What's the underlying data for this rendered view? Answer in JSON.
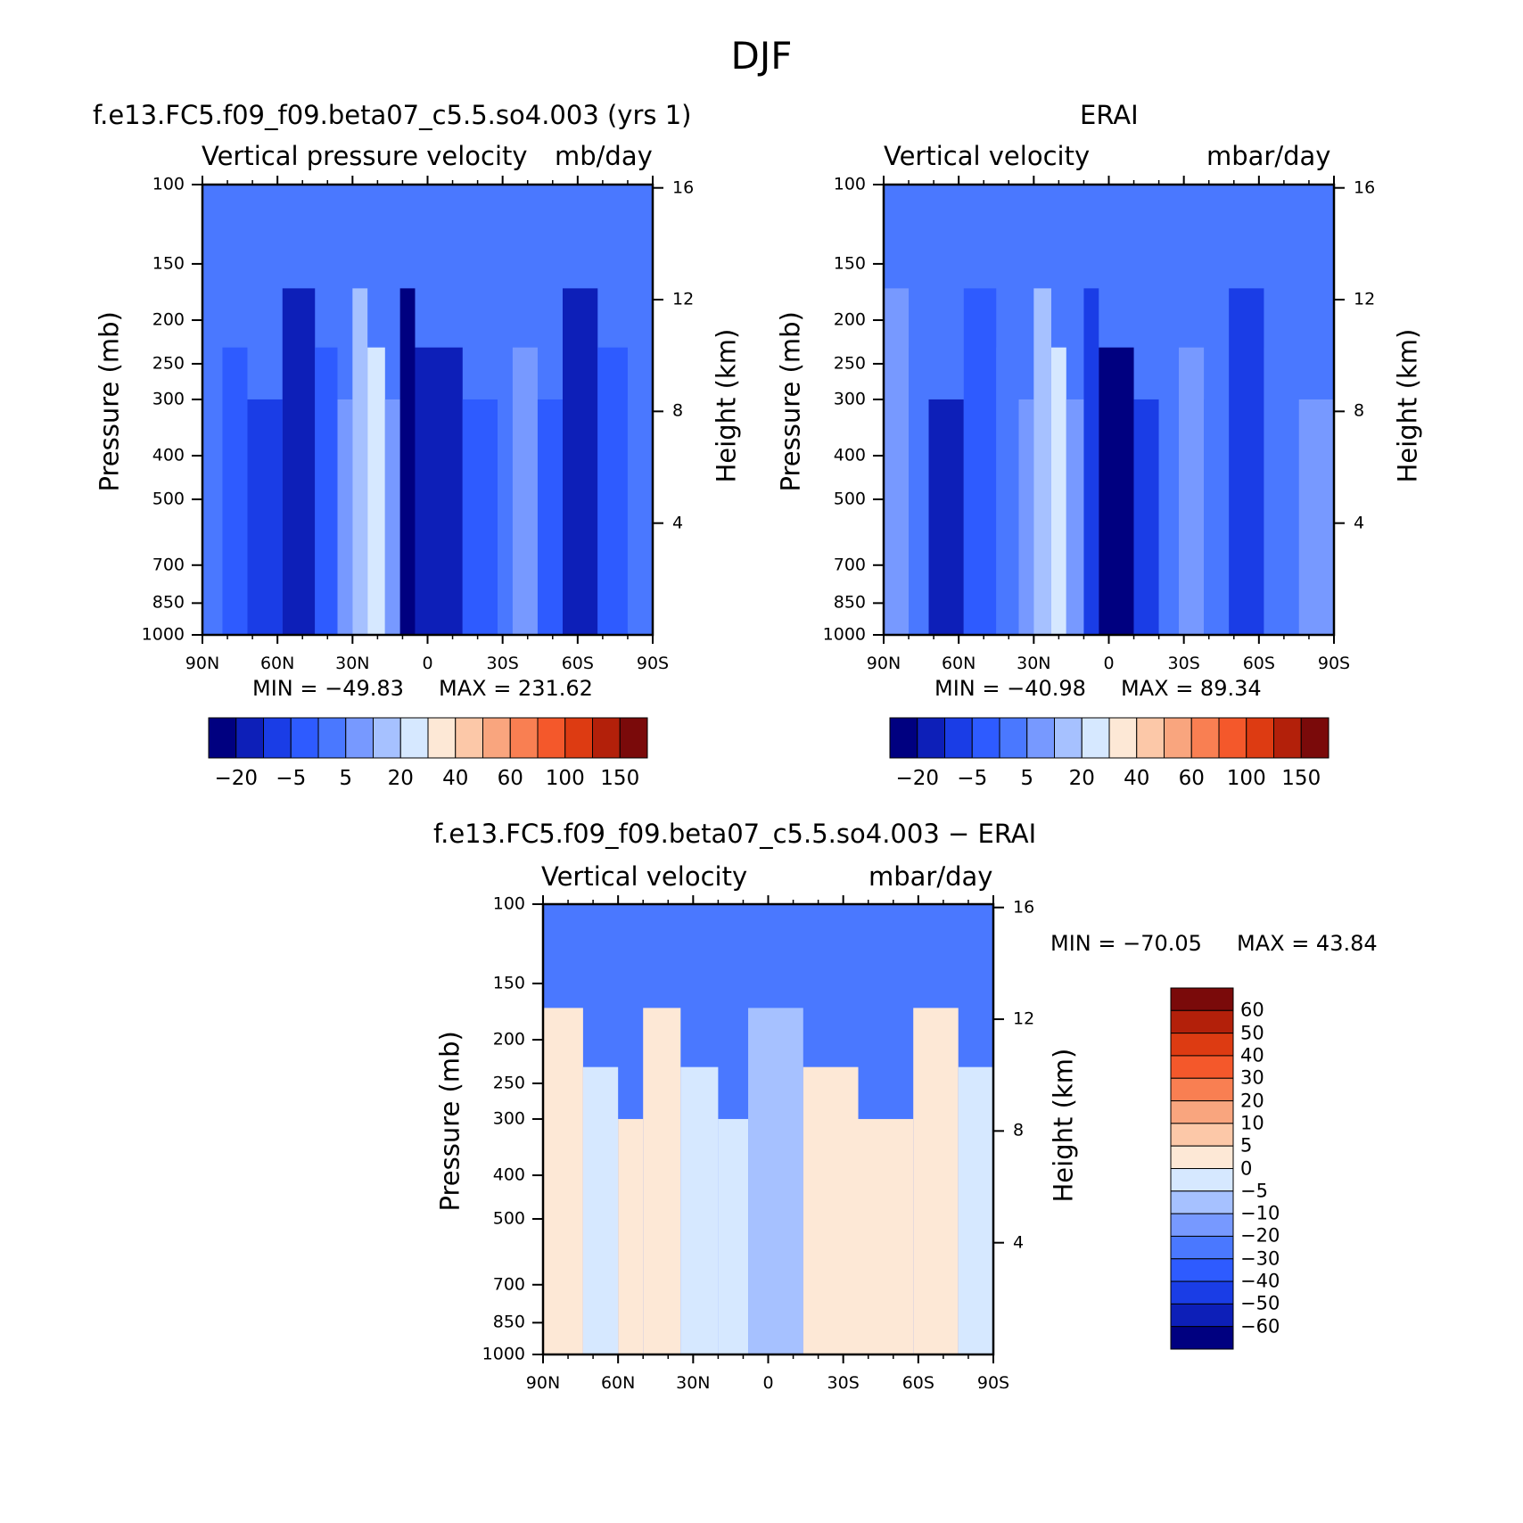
{
  "figure": {
    "title": "DJF"
  },
  "chart_data": [
    {
      "type": "heatmap",
      "panel": "model",
      "title": "f.e13.FC5.f09_f09.beta07_c5.5.so4.003 (yrs 1)",
      "subtitle_left": "Vertical pressure velocity",
      "subtitle_right": "mb/day",
      "ylabel": "Pressure (mb)",
      "ylabel_right": "Height (km)",
      "x_ticks": [
        "90N",
        "60N",
        "30N",
        "0",
        "30S",
        "60S",
        "90S"
      ],
      "x_range": [
        90,
        -90
      ],
      "y_ticks": [
        100,
        150,
        200,
        250,
        300,
        400,
        500,
        700,
        850,
        1000
      ],
      "y_range": [
        100,
        1000
      ],
      "y_scale": "log",
      "y_right_ticks": [
        16,
        12,
        8,
        4
      ],
      "min_label": "MIN = −49.83",
      "max_label": "MAX = 231.62",
      "colorbar": {
        "orientation": "horizontal",
        "tick_labels": [
          "−20",
          "−5",
          "5",
          "20",
          "40",
          "60",
          "100",
          "150"
        ],
        "colors": [
          "#000080",
          "#0d1fb8",
          "#1a3de6",
          "#2e5bff",
          "#4a78ff",
          "#7799ff",
          "#a6c1ff",
          "#d6e8ff",
          "#fde8d6",
          "#fcc8a8",
          "#f9a57e",
          "#f97f52",
          "#f4582b",
          "#dd3b12",
          "#b3200a",
          "#7a0a0a"
        ]
      },
      "bands": [
        {
          "from": 90,
          "to": 82,
          "level": 4
        },
        {
          "from": 82,
          "to": 72,
          "level": 3
        },
        {
          "from": 72,
          "to": 58,
          "level": 2
        },
        {
          "from": 58,
          "to": 45,
          "level": 1
        },
        {
          "from": 45,
          "to": 36,
          "level": 3
        },
        {
          "from": 36,
          "to": 30,
          "level": 5
        },
        {
          "from": 30,
          "to": 24,
          "level": 6
        },
        {
          "from": 24,
          "to": 17,
          "level": 7
        },
        {
          "from": 17,
          "to": 11,
          "level": 5
        },
        {
          "from": 11,
          "to": 5,
          "level": 0
        },
        {
          "from": 5,
          "to": -14,
          "level": 1
        },
        {
          "from": -14,
          "to": -28,
          "level": 3
        },
        {
          "from": -28,
          "to": -34,
          "level": 4
        },
        {
          "from": -34,
          "to": -44,
          "level": 5
        },
        {
          "from": -44,
          "to": -54,
          "level": 3
        },
        {
          "from": -54,
          "to": -68,
          "level": 1
        },
        {
          "from": -68,
          "to": -80,
          "level": 3
        },
        {
          "from": -80,
          "to": -90,
          "level": 4
        }
      ]
    },
    {
      "type": "heatmap",
      "panel": "observations",
      "title": "ERAI",
      "subtitle_left": "Vertical velocity",
      "subtitle_right": "mbar/day",
      "ylabel": "Pressure (mb)",
      "ylabel_right": "Height (km)",
      "x_ticks": [
        "90N",
        "60N",
        "30N",
        "0",
        "30S",
        "60S",
        "90S"
      ],
      "x_range": [
        90,
        -90
      ],
      "y_ticks": [
        100,
        150,
        200,
        250,
        300,
        400,
        500,
        700,
        850,
        1000
      ],
      "y_range": [
        100,
        1000
      ],
      "y_scale": "log",
      "y_right_ticks": [
        16,
        12,
        8,
        4
      ],
      "min_label": "MIN = −40.98",
      "max_label": "MAX = 89.34",
      "colorbar": {
        "orientation": "horizontal",
        "tick_labels": [
          "−20",
          "−5",
          "5",
          "20",
          "40",
          "60",
          "100",
          "150"
        ],
        "colors": [
          "#000080",
          "#0d1fb8",
          "#1a3de6",
          "#2e5bff",
          "#4a78ff",
          "#7799ff",
          "#a6c1ff",
          "#d6e8ff",
          "#fde8d6",
          "#fcc8a8",
          "#f9a57e",
          "#f97f52",
          "#f4582b",
          "#dd3b12",
          "#b3200a",
          "#7a0a0a"
        ]
      },
      "bands": [
        {
          "from": 90,
          "to": 80,
          "level": 5
        },
        {
          "from": 80,
          "to": 72,
          "level": 4
        },
        {
          "from": 72,
          "to": 58,
          "level": 1
        },
        {
          "from": 58,
          "to": 45,
          "level": 3
        },
        {
          "from": 45,
          "to": 36,
          "level": 4
        },
        {
          "from": 36,
          "to": 30,
          "level": 5
        },
        {
          "from": 30,
          "to": 23,
          "level": 6
        },
        {
          "from": 23,
          "to": 17,
          "level": 7
        },
        {
          "from": 17,
          "to": 10,
          "level": 5
        },
        {
          "from": 10,
          "to": 4,
          "level": 2
        },
        {
          "from": 4,
          "to": -10,
          "level": 0
        },
        {
          "from": -10,
          "to": -20,
          "level": 2
        },
        {
          "from": -20,
          "to": -28,
          "level": 4
        },
        {
          "from": -28,
          "to": -38,
          "level": 5
        },
        {
          "from": -38,
          "to": -48,
          "level": 4
        },
        {
          "from": -48,
          "to": -62,
          "level": 2
        },
        {
          "from": -62,
          "to": -76,
          "level": 4
        },
        {
          "from": -76,
          "to": -90,
          "level": 5
        }
      ]
    },
    {
      "type": "heatmap",
      "panel": "difference",
      "title": "f.e13.FC5.f09_f09.beta07_c5.5.so4.003 − ERAI",
      "subtitle_left": "Vertical velocity",
      "subtitle_right": "mbar/day",
      "ylabel": "Pressure (mb)",
      "ylabel_right": "Height (km)",
      "x_ticks": [
        "90N",
        "60N",
        "30N",
        "0",
        "30S",
        "60S",
        "90S"
      ],
      "x_range": [
        90,
        -90
      ],
      "y_ticks": [
        100,
        150,
        200,
        250,
        300,
        400,
        500,
        700,
        850,
        1000
      ],
      "y_range": [
        100,
        1000
      ],
      "y_scale": "log",
      "y_right_ticks": [
        16,
        12,
        8,
        4
      ],
      "min_label": "MIN = −70.05",
      "max_label": "MAX = 43.84",
      "colorbar": {
        "orientation": "vertical",
        "tick_labels": [
          "60",
          "50",
          "40",
          "30",
          "20",
          "10",
          "5",
          "0",
          "−5",
          "−10",
          "−20",
          "−30",
          "−40",
          "−50",
          "−60"
        ],
        "colors": [
          "#7a0a0a",
          "#b3200a",
          "#dd3b12",
          "#f4582b",
          "#f97f52",
          "#f9a57e",
          "#fcc8a8",
          "#fde8d6",
          "#d6e8ff",
          "#a6c1ff",
          "#7799ff",
          "#4a78ff",
          "#2e5bff",
          "#1a3de6",
          "#0d1fb8",
          "#000080"
        ]
      },
      "bands": [
        {
          "from": 90,
          "to": 74,
          "level": 8
        },
        {
          "from": 74,
          "to": 60,
          "level": 7
        },
        {
          "from": 60,
          "to": 50,
          "level": 8
        },
        {
          "from": 50,
          "to": 35,
          "level": 8
        },
        {
          "from": 35,
          "to": 20,
          "level": 7
        },
        {
          "from": 20,
          "to": 8,
          "level": 7
        },
        {
          "from": 8,
          "to": -14,
          "level": 6
        },
        {
          "from": -14,
          "to": -36,
          "level": 8
        },
        {
          "from": -36,
          "to": -58,
          "level": 8
        },
        {
          "from": -58,
          "to": -76,
          "level": 8
        },
        {
          "from": -76,
          "to": -90,
          "level": 7
        }
      ]
    }
  ]
}
